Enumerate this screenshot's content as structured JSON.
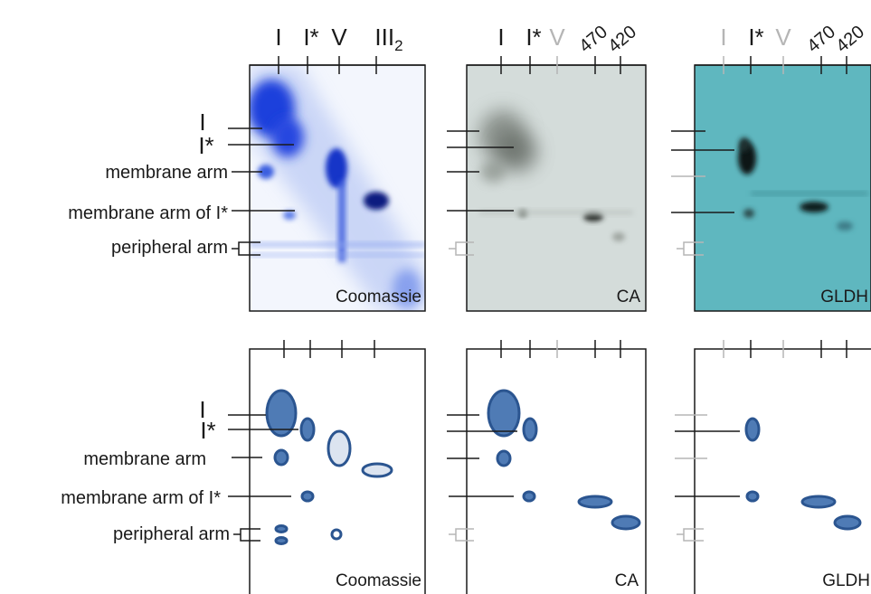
{
  "top_column_labels": {
    "coomassie": [
      "I",
      "I*",
      "V",
      "III2"
    ],
    "ca": [
      "I",
      "I*",
      "V",
      "470",
      "420"
    ],
    "gldh": [
      "I",
      "I*",
      "V",
      "470",
      "420"
    ]
  },
  "row_labels": {
    "top": [
      "I",
      "I*",
      "membrane arm",
      "membrane arm of I*",
      "peripheral arm"
    ],
    "bottom": [
      "I",
      "I*",
      "membrane arm",
      "membrane arm of I*",
      "peripheral arm"
    ]
  },
  "panel_labels": {
    "top": [
      "Coomassie",
      "CA",
      "GLDH"
    ],
    "bottom": [
      "Coomassie",
      "CA",
      "GLDH"
    ]
  },
  "colors": {
    "coomassie_gel": "#2f55e6",
    "ca_gel_bg": "#d4dcda",
    "gldh_gel_bg": "#5fb7bf",
    "spot_fill": "#4f7bb5",
    "spot_stroke": "#2b5590",
    "faded_marker": "#b5b5b5"
  }
}
